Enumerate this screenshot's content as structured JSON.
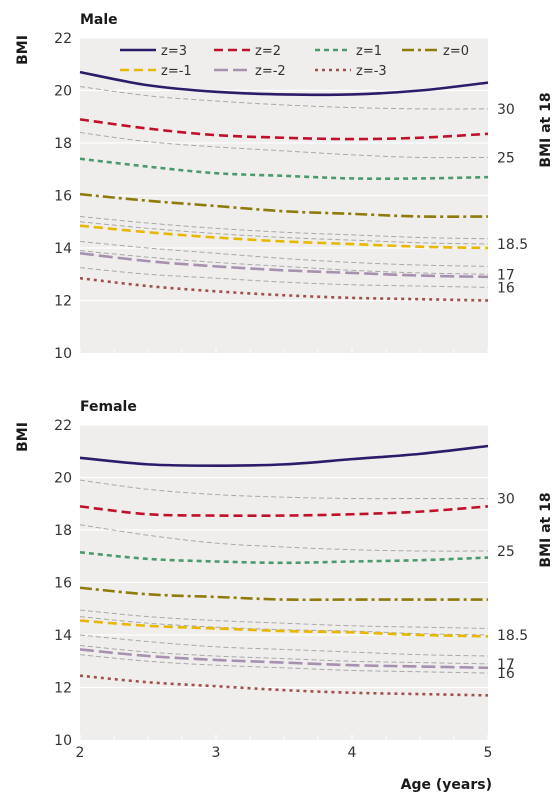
{
  "chart_data": [
    {
      "type": "line",
      "title": "Male",
      "ylabel": "BMI",
      "right_label": "BMI at 18",
      "x": [
        2,
        2.5,
        3,
        3.5,
        4,
        4.5,
        5
      ],
      "xlim": [
        2,
        5
      ],
      "ylim": [
        10,
        22
      ],
      "yticks": [
        10,
        12,
        14,
        16,
        18,
        20,
        22
      ],
      "xticks": [
        2,
        3,
        4,
        5
      ],
      "grid": true,
      "legend": "top",
      "series": [
        {
          "name": "z=3",
          "values": [
            20.7,
            20.2,
            19.95,
            19.85,
            19.85,
            20.0,
            20.3
          ],
          "color": "#2d1b69",
          "dash": "none"
        },
        {
          "name": "z=2",
          "values": [
            18.9,
            18.55,
            18.3,
            18.2,
            18.15,
            18.2,
            18.35
          ],
          "color": "#c0102a",
          "dash": "9,5"
        },
        {
          "name": "z=1",
          "values": [
            17.4,
            17.1,
            16.85,
            16.75,
            16.65,
            16.65,
            16.7
          ],
          "color": "#4a9a6b",
          "dash": "5,4"
        },
        {
          "name": "z=0",
          "values": [
            16.05,
            15.8,
            15.6,
            15.4,
            15.3,
            15.2,
            15.2
          ],
          "color": "#8f7a0a",
          "dash": "12,4,3,4"
        },
        {
          "name": "z=-1",
          "values": [
            14.85,
            14.6,
            14.4,
            14.25,
            14.15,
            14.05,
            14.0
          ],
          "color": "#e8b800",
          "dash": "9,5"
        },
        {
          "name": "z=-2",
          "values": [
            13.8,
            13.5,
            13.3,
            13.15,
            13.05,
            12.95,
            12.9
          ],
          "color": "#a890b0",
          "dash": "14,5"
        },
        {
          "name": "z=-3",
          "values": [
            12.85,
            12.55,
            12.35,
            12.2,
            12.1,
            12.05,
            12.0
          ],
          "color": "#a0504a",
          "dash": "3,4"
        }
      ],
      "cutoff_lines": [
        {
          "label": "30",
          "values": [
            20.15,
            19.8,
            19.6,
            19.45,
            19.35,
            19.3,
            19.3
          ]
        },
        {
          "label": "25",
          "values": [
            18.4,
            18.05,
            17.85,
            17.7,
            17.55,
            17.45,
            17.45
          ]
        },
        {
          "label": "",
          "values": [
            15.2,
            14.95,
            14.75,
            14.6,
            14.5,
            14.4,
            14.35
          ]
        },
        {
          "label": "18.5",
          "values": [
            15.0,
            14.75,
            14.55,
            14.4,
            14.3,
            14.2,
            14.15
          ]
        },
        {
          "label": "",
          "values": [
            14.25,
            14.0,
            13.8,
            13.6,
            13.45,
            13.35,
            13.3
          ]
        },
        {
          "label": "17",
          "values": [
            13.9,
            13.65,
            13.45,
            13.3,
            13.15,
            13.05,
            13.0
          ]
        },
        {
          "label": "16",
          "values": [
            13.25,
            13.0,
            12.85,
            12.7,
            12.6,
            12.55,
            12.5
          ]
        }
      ]
    },
    {
      "type": "line",
      "title": "Female",
      "ylabel": "BMI",
      "right_label": "BMI at 18",
      "xlabel": "Age (years)",
      "x": [
        2,
        2.5,
        3,
        3.5,
        4,
        4.5,
        5
      ],
      "xlim": [
        2,
        5
      ],
      "ylim": [
        10,
        22
      ],
      "yticks": [
        10,
        12,
        14,
        16,
        18,
        20,
        22
      ],
      "xticks": [
        2,
        3,
        4,
        5
      ],
      "grid": true,
      "series": [
        {
          "name": "z=3",
          "values": [
            20.75,
            20.5,
            20.45,
            20.5,
            20.7,
            20.9,
            21.2
          ],
          "color": "#2d1b69",
          "dash": "none"
        },
        {
          "name": "z=2",
          "values": [
            18.9,
            18.6,
            18.55,
            18.55,
            18.6,
            18.7,
            18.9
          ],
          "color": "#c0102a",
          "dash": "9,5"
        },
        {
          "name": "z=1",
          "values": [
            17.15,
            16.9,
            16.8,
            16.75,
            16.8,
            16.85,
            16.95
          ],
          "color": "#4a9a6b",
          "dash": "5,4"
        },
        {
          "name": "z=0",
          "values": [
            15.8,
            15.55,
            15.45,
            15.35,
            15.35,
            15.35,
            15.35
          ],
          "color": "#8f7a0a",
          "dash": "12,4,3,4"
        },
        {
          "name": "z=-1",
          "values": [
            14.55,
            14.35,
            14.25,
            14.15,
            14.1,
            14.0,
            13.95
          ],
          "color": "#e8b800",
          "dash": "9,5"
        },
        {
          "name": "z=-2",
          "values": [
            13.45,
            13.2,
            13.05,
            12.95,
            12.85,
            12.8,
            12.75
          ],
          "color": "#a890b0",
          "dash": "14,5"
        },
        {
          "name": "z=-3",
          "values": [
            12.45,
            12.2,
            12.05,
            11.9,
            11.8,
            11.75,
            11.7
          ],
          "color": "#a0504a",
          "dash": "3,4"
        }
      ],
      "cutoff_lines": [
        {
          "label": "30",
          "values": [
            19.9,
            19.55,
            19.35,
            19.25,
            19.2,
            19.2,
            19.2
          ]
        },
        {
          "label": "25",
          "values": [
            18.2,
            17.8,
            17.5,
            17.35,
            17.25,
            17.2,
            17.2
          ]
        },
        {
          "label": "",
          "values": [
            14.95,
            14.7,
            14.55,
            14.45,
            14.35,
            14.3,
            14.25
          ]
        },
        {
          "label": "18.5",
          "values": [
            14.7,
            14.45,
            14.3,
            14.2,
            14.15,
            14.05,
            14.0
          ]
        },
        {
          "label": "",
          "values": [
            14.0,
            13.75,
            13.55,
            13.45,
            13.35,
            13.25,
            13.2
          ]
        },
        {
          "label": "17",
          "values": [
            13.6,
            13.35,
            13.2,
            13.1,
            13.0,
            12.95,
            12.9
          ]
        },
        {
          "label": "16",
          "values": [
            13.25,
            13.0,
            12.85,
            12.75,
            12.65,
            12.6,
            12.55
          ]
        }
      ]
    }
  ]
}
